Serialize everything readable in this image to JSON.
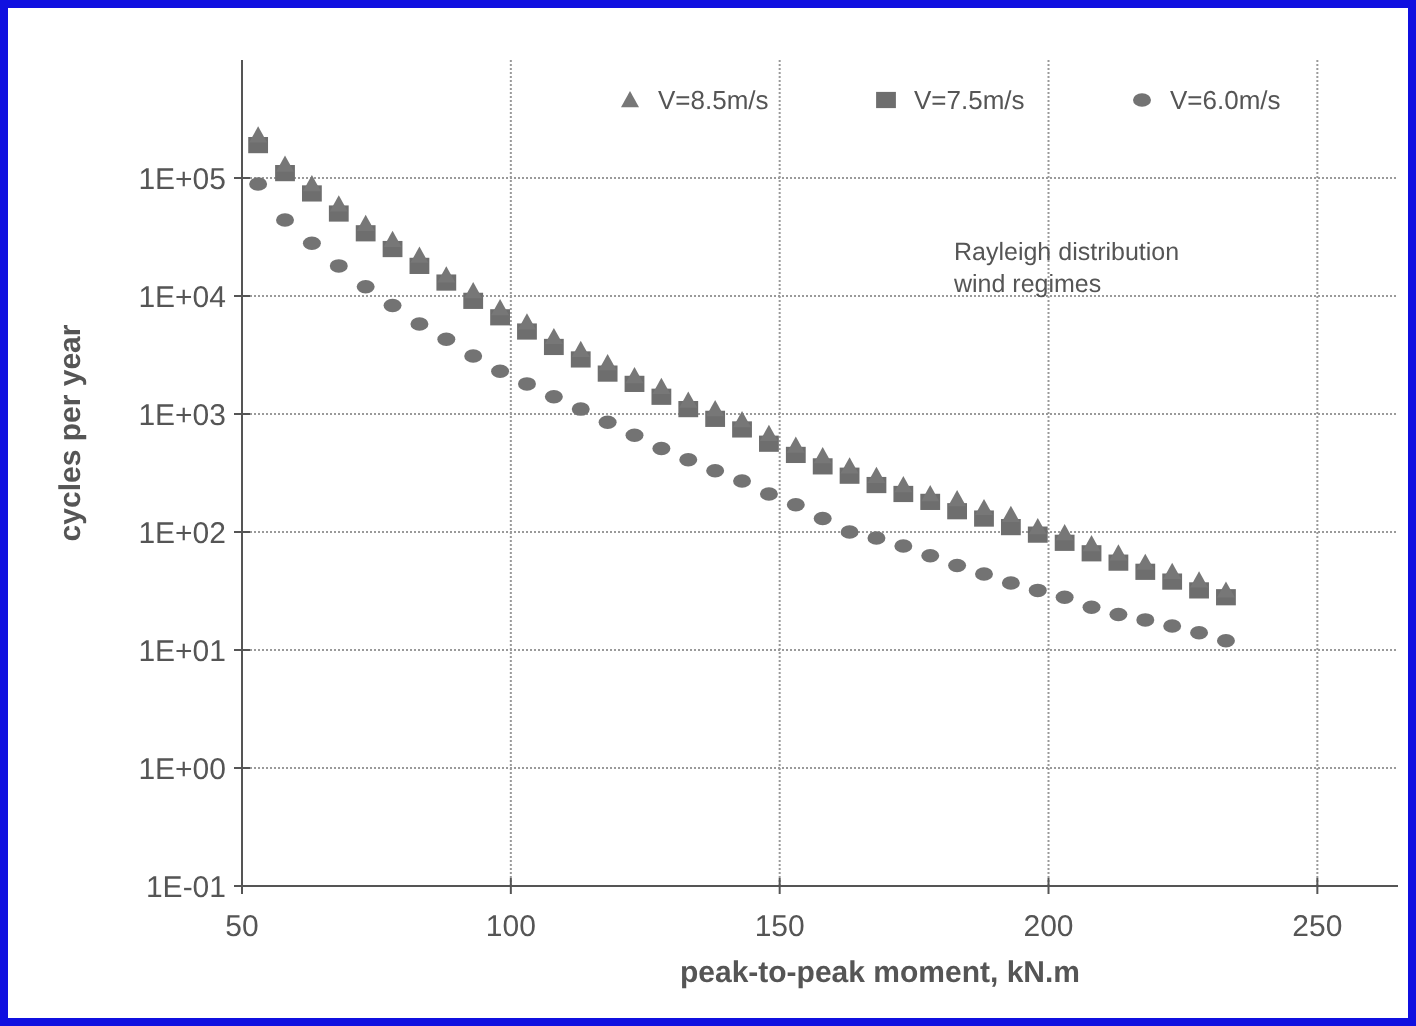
{
  "chart_data": {
    "type": "scatter",
    "xlabel": "peak-to-peak moment, kN.m",
    "ylabel": "cycles per year",
    "x": [
      53,
      58,
      63,
      68,
      73,
      78,
      83,
      88,
      93,
      98,
      103,
      108,
      113,
      118,
      123,
      128,
      133,
      138,
      143,
      148,
      153,
      158,
      163,
      168,
      173,
      178,
      183,
      188,
      193,
      198,
      203,
      208,
      213,
      218,
      223,
      228,
      233
    ],
    "series": [
      {
        "name": "V=8.5m/s",
        "color": "#777777",
        "marker": "triangle",
        "values": [
          230000,
          130000,
          89000,
          60000,
          41000,
          30000,
          22000,
          15000,
          11000,
          7900,
          6000,
          4500,
          3500,
          2700,
          2100,
          1700,
          1300,
          1100,
          890,
          680,
          540,
          440,
          360,
          300,
          250,
          210,
          190,
          160,
          140,
          110,
          98,
          79,
          66,
          55,
          46,
          39,
          32
        ]
      },
      {
        "name": "V=7.5m/s",
        "color": "#6e6e6e",
        "marker": "square",
        "values": [
          190000,
          110000,
          74000,
          50000,
          34000,
          25000,
          18000,
          13000,
          9100,
          6600,
          5000,
          3700,
          2900,
          2200,
          1800,
          1400,
          1100,
          910,
          740,
          560,
          450,
          360,
          300,
          250,
          210,
          180,
          150,
          130,
          110,
          95,
          81,
          66,
          55,
          46,
          38,
          32,
          28
        ]
      },
      {
        "name": "V=6.0m/s",
        "color": "#737373",
        "marker": "circle",
        "values": [
          89000,
          44000,
          28000,
          18000,
          12000,
          8300,
          5800,
          4300,
          3100,
          2300,
          1800,
          1400,
          1100,
          850,
          660,
          510,
          410,
          330,
          270,
          210,
          170,
          130,
          100,
          89,
          76,
          63,
          52,
          44,
          37,
          32,
          28,
          23,
          20,
          18,
          16,
          14,
          12
        ]
      }
    ],
    "log": "y",
    "xlim": [
      50,
      265
    ],
    "xticks": [
      50,
      100,
      150,
      200,
      250
    ],
    "ylim": [
      0.1,
      1000000
    ],
    "yticks": [
      {
        "value": 0.1,
        "label": "1E-01"
      },
      {
        "value": 1,
        "label": "1E+00"
      },
      {
        "value": 10,
        "label": "1E+01"
      },
      {
        "value": 100,
        "label": "1E+02"
      },
      {
        "value": 1000,
        "label": "1E+03"
      },
      {
        "value": 10000,
        "label": "1E+04"
      },
      {
        "value": 100000,
        "label": "1E+05"
      }
    ],
    "grid": true,
    "legend": "top right",
    "annotations": [
      "Rayleigh distribution\nwind regimes"
    ]
  }
}
